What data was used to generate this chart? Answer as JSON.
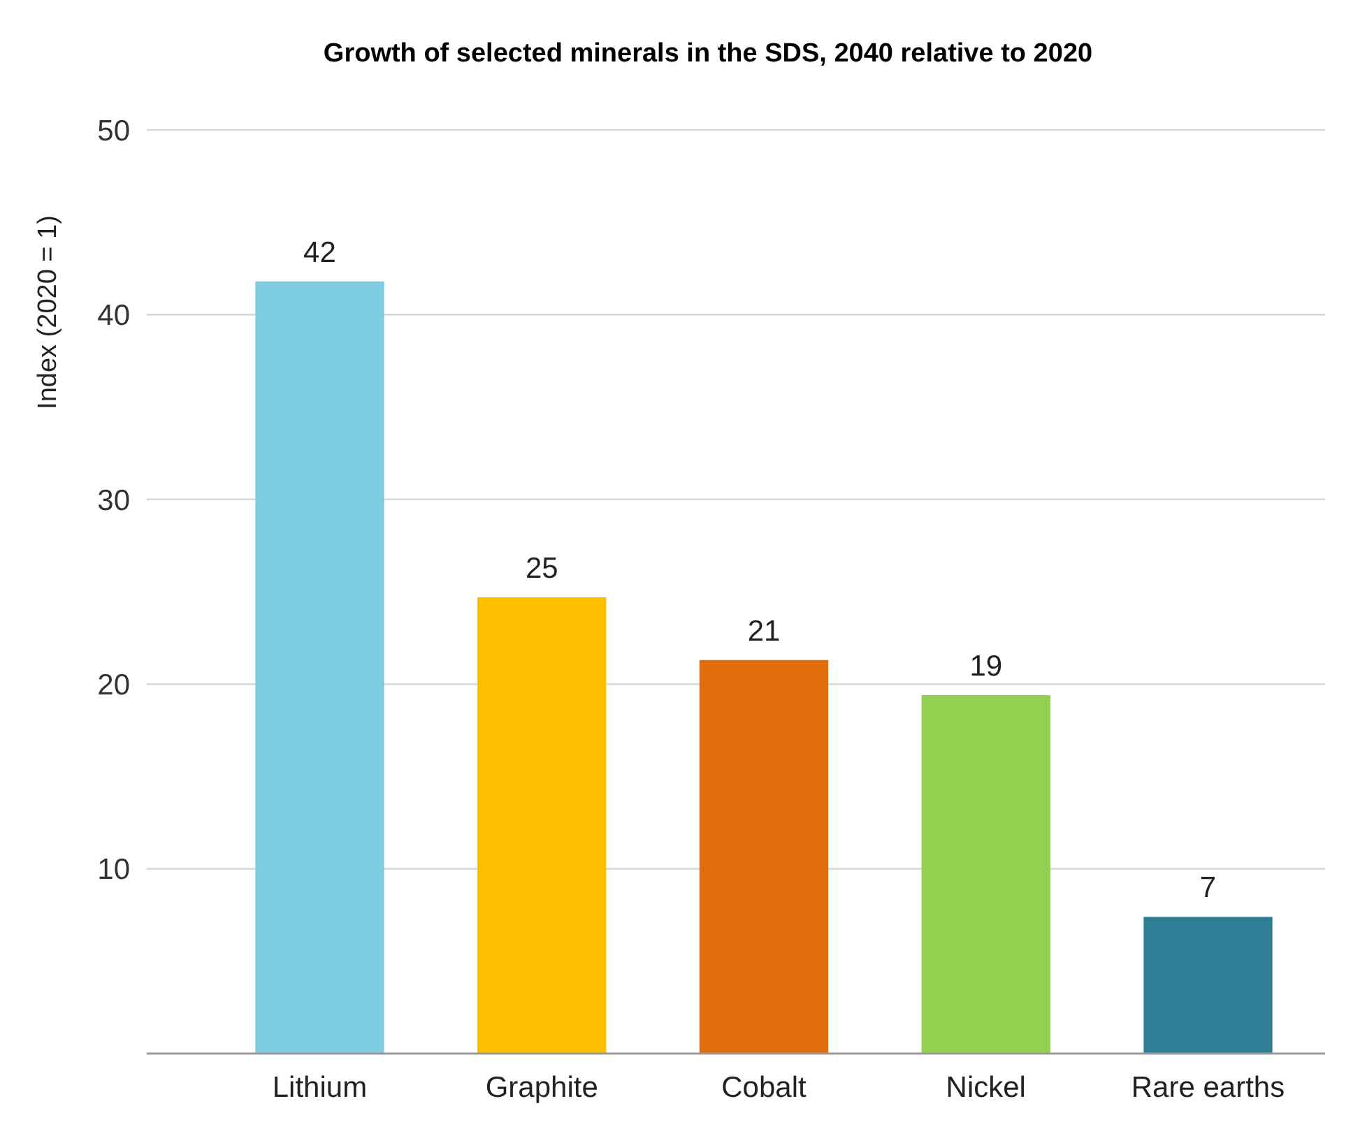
{
  "chart_data": {
    "type": "bar",
    "title": "Growth of selected minerals in the SDS, 2040 relative to 2020",
    "ylabel": "Index (2020 = 1)",
    "categories": [
      "Lithium",
      "Graphite",
      "Cobalt",
      "Nickel",
      "Rare earths"
    ],
    "values": [
      41.8,
      24.7,
      21.3,
      19.4,
      7.4
    ],
    "colors": [
      "#7fcde0",
      "#fbbf00",
      "#e06c0a",
      "#92d050",
      "#2e7f95"
    ],
    "value_labels": [
      "42",
      "25",
      "21",
      "19",
      "7"
    ],
    "ylim": [
      0,
      50
    ],
    "yticks": [
      10,
      20,
      30,
      40,
      50
    ],
    "grid": "y"
  }
}
